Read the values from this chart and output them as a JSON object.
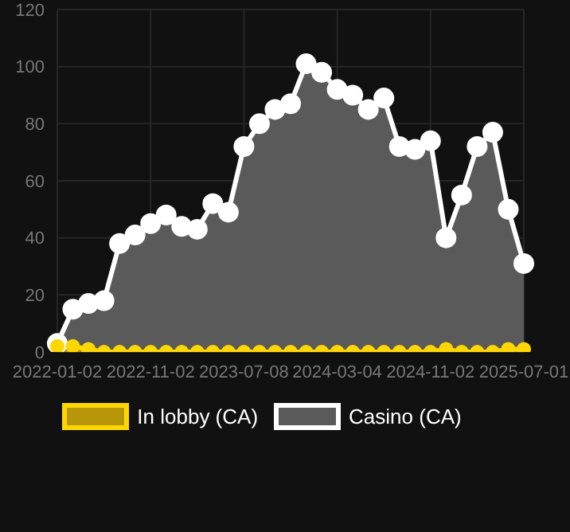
{
  "chart_data": {
    "type": "area",
    "categories": [
      "2022-01-02",
      null,
      null,
      null,
      null,
      null,
      "2022-11-02",
      null,
      null,
      null,
      null,
      null,
      "2023-07-08",
      null,
      null,
      null,
      null,
      null,
      "2024-03-04",
      null,
      null,
      null,
      null,
      null,
      "2024-11-02",
      null,
      null,
      null,
      null,
      null,
      "2025-07-01"
    ],
    "series": [
      {
        "name": "In lobby (CA)",
        "color": "#ffd700",
        "values": [
          2,
          2,
          1,
          0,
          0,
          0,
          0,
          0,
          0,
          0,
          0,
          0,
          0,
          0,
          0,
          0,
          0,
          0,
          0,
          0,
          0,
          0,
          0,
          0,
          0,
          1,
          0,
          0,
          0,
          1,
          1
        ]
      },
      {
        "name": "Casino (CA)",
        "color": "#ffffff",
        "values": [
          3,
          15,
          17,
          18,
          38,
          41,
          45,
          48,
          44,
          43,
          52,
          49,
          72,
          80,
          85,
          87,
          101,
          98,
          92,
          90,
          85,
          89,
          72,
          71,
          74,
          40,
          55,
          72,
          77,
          50,
          31
        ]
      }
    ],
    "ylim": [
      0,
      120
    ],
    "yticks": [
      0,
      20,
      40,
      60,
      80,
      100,
      120
    ],
    "grid": true,
    "legend": "bottom",
    "marker": "circle"
  }
}
